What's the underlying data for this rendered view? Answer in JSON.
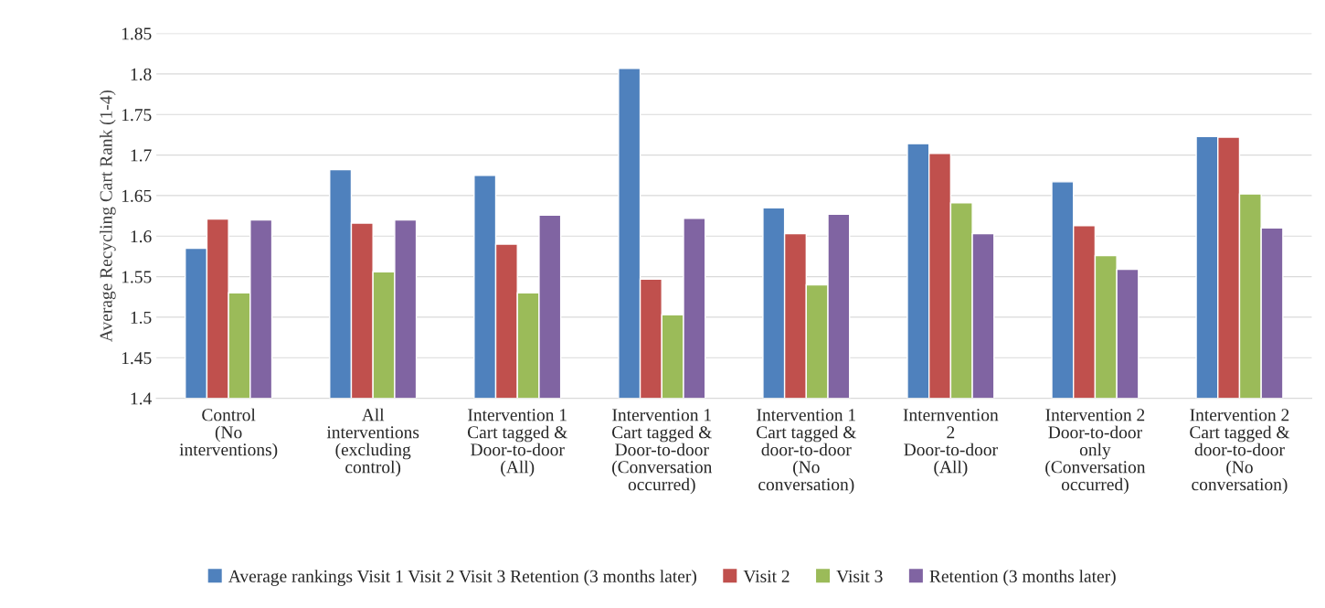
{
  "chart_data": {
    "type": "bar",
    "ylabel": "Average Recycling Cart Rank (1-4)",
    "categories": [
      "Control\n(No\ninterventions)",
      "All\ninterventions\n(excluding\ncontrol)",
      "Intervention 1\nCart tagged &\nDoor-to-door\n(All)",
      "Intervention 1\nCart tagged &\nDoor-to-door\n(Conversation\noccurred)",
      "Intervention 1\nCart tagged &\ndoor-to-door\n(No\nconversation)",
      "Internvention\n2\nDoor-to-door\n(All)",
      "Intervention 2\nDoor-to-door\nonly\n(Conversation\noccurred)",
      "Intervention 2\nCart tagged &\ndoor-to-door\n(No\nconversation)"
    ],
    "series": [
      {
        "name": "Average rankings Visit 1 Visit 2 Visit 3 Retention (3 months later)",
        "color": "#4f81bd",
        "values": [
          1.585,
          1.682,
          1.675,
          1.807,
          1.635,
          1.714,
          1.667,
          1.723
        ]
      },
      {
        "name": "Visit 2",
        "color": "#c0504d",
        "values": [
          1.621,
          1.616,
          1.59,
          1.547,
          1.603,
          1.702,
          1.613,
          1.722
        ]
      },
      {
        "name": "Visit 3",
        "color": "#9bbb59",
        "values": [
          1.53,
          1.556,
          1.53,
          1.503,
          1.54,
          1.641,
          1.576,
          1.652
        ]
      },
      {
        "name": "Retention (3 months later)",
        "color": "#8064a2",
        "values": [
          1.62,
          1.62,
          1.626,
          1.622,
          1.627,
          1.603,
          1.559,
          1.61
        ]
      }
    ],
    "ylim": [
      1.4,
      1.85
    ],
    "yticks": [
      1.4,
      1.45,
      1.5,
      1.55,
      1.6,
      1.65,
      1.7,
      1.75,
      1.8,
      1.85
    ],
    "grid": "y",
    "legend": "bottom"
  }
}
